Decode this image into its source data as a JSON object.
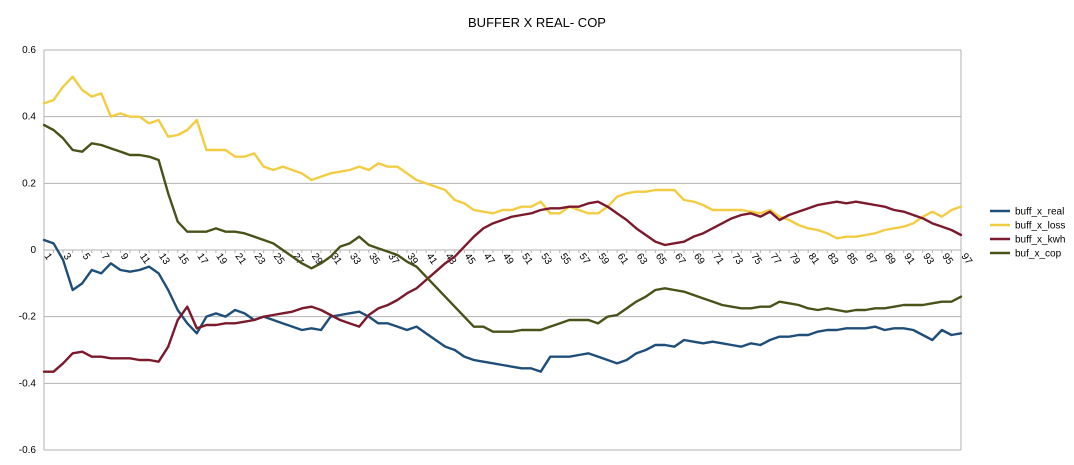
{
  "chart_data": {
    "type": "line",
    "title": "BUFFER X REAL- COP",
    "xlabel": "",
    "ylabel": "",
    "ylim": [
      -0.6,
      0.6
    ],
    "yticks": [
      "0.6",
      "0.4",
      "0.2",
      "0",
      "-0.2",
      "-0.4",
      "-0.6"
    ],
    "ytick_values": [
      0.6,
      0.4,
      0.2,
      0,
      -0.2,
      -0.4,
      -0.6
    ],
    "grid": true,
    "legend_position": "right",
    "x": [
      1,
      2,
      3,
      4,
      5,
      6,
      7,
      8,
      9,
      10,
      11,
      12,
      13,
      14,
      15,
      16,
      17,
      18,
      19,
      20,
      21,
      22,
      23,
      24,
      25,
      26,
      27,
      28,
      29,
      30,
      31,
      32,
      33,
      34,
      35,
      36,
      37,
      38,
      39,
      40,
      41,
      42,
      43,
      44,
      45,
      46,
      47,
      48,
      49,
      50,
      51,
      52,
      53,
      54,
      55,
      56,
      57,
      58,
      59,
      60,
      61,
      62,
      63,
      64,
      65,
      66,
      67,
      68,
      69,
      70,
      71,
      72,
      73,
      74,
      75,
      76,
      77,
      78,
      79,
      80,
      81,
      82,
      83,
      84,
      85,
      86,
      87,
      88,
      89,
      90,
      91,
      92,
      93,
      94,
      95,
      96,
      97
    ],
    "x_tick_labels": [
      "1",
      "3",
      "5",
      "7",
      "9",
      "11",
      "13",
      "15",
      "17",
      "19",
      "21",
      "23",
      "25",
      "27",
      "29",
      "31",
      "33",
      "35",
      "37",
      "39",
      "41",
      "43",
      "45",
      "47",
      "49",
      "51",
      "53",
      "55",
      "57",
      "59",
      "61",
      "63",
      "65",
      "67",
      "69",
      "71",
      "73",
      "75",
      "77",
      "79",
      "81",
      "83",
      "85",
      "87",
      "89",
      "91",
      "93",
      "95",
      "97"
    ],
    "series": [
      {
        "name": "buff_x_real",
        "color": "#1f4e79",
        "values": [
          0.03,
          0.02,
          -0.03,
          -0.12,
          -0.1,
          -0.06,
          -0.07,
          -0.04,
          -0.06,
          -0.065,
          -0.06,
          -0.05,
          -0.07,
          -0.12,
          -0.18,
          -0.22,
          -0.25,
          -0.2,
          -0.19,
          -0.2,
          -0.18,
          -0.19,
          -0.21,
          -0.2,
          -0.21,
          -0.22,
          -0.23,
          -0.24,
          -0.235,
          -0.24,
          -0.2,
          -0.195,
          -0.19,
          -0.185,
          -0.2,
          -0.22,
          -0.22,
          -0.23,
          -0.24,
          -0.23,
          -0.25,
          -0.27,
          -0.29,
          -0.3,
          -0.32,
          -0.33,
          -0.335,
          -0.34,
          -0.345,
          -0.35,
          -0.355,
          -0.355,
          -0.365,
          -0.32,
          -0.32,
          -0.32,
          -0.315,
          -0.31,
          -0.32,
          -0.33,
          -0.34,
          -0.33,
          -0.31,
          -0.3,
          -0.285,
          -0.285,
          -0.29,
          -0.27,
          -0.275,
          -0.28,
          -0.275,
          -0.28,
          -0.285,
          -0.29,
          -0.28,
          -0.285,
          -0.27,
          -0.26,
          -0.26,
          -0.255,
          -0.255,
          -0.245,
          -0.24,
          -0.24,
          -0.235,
          -0.235,
          -0.235,
          -0.23,
          -0.24,
          -0.235,
          -0.235,
          -0.24,
          -0.255,
          -0.27,
          -0.24,
          -0.255,
          -0.25
        ]
      },
      {
        "name": "buff_x_loss",
        "color": "#f2cd44",
        "values": [
          0.44,
          0.45,
          0.49,
          0.52,
          0.48,
          0.46,
          0.47,
          0.4,
          0.41,
          0.4,
          0.4,
          0.38,
          0.39,
          0.34,
          0.345,
          0.36,
          0.39,
          0.3,
          0.3,
          0.3,
          0.28,
          0.28,
          0.29,
          0.25,
          0.24,
          0.25,
          0.24,
          0.23,
          0.21,
          0.22,
          0.23,
          0.235,
          0.24,
          0.25,
          0.24,
          0.26,
          0.25,
          0.25,
          0.23,
          0.21,
          0.2,
          0.19,
          0.18,
          0.15,
          0.14,
          0.12,
          0.115,
          0.11,
          0.12,
          0.12,
          0.13,
          0.13,
          0.145,
          0.11,
          0.11,
          0.13,
          0.12,
          0.11,
          0.11,
          0.13,
          0.16,
          0.17,
          0.175,
          0.175,
          0.18,
          0.18,
          0.18,
          0.15,
          0.145,
          0.135,
          0.12,
          0.12,
          0.12,
          0.12,
          0.115,
          0.11,
          0.12,
          0.1,
          0.09,
          0.075,
          0.065,
          0.06,
          0.05,
          0.035,
          0.04,
          0.04,
          0.045,
          0.05,
          0.06,
          0.065,
          0.07,
          0.08,
          0.1,
          0.115,
          0.1,
          0.12,
          0.13
        ]
      },
      {
        "name": "buff_x_kwh",
        "color": "#7b1a2c",
        "values": [
          -0.365,
          -0.365,
          -0.34,
          -0.31,
          -0.305,
          -0.32,
          -0.32,
          -0.325,
          -0.325,
          -0.325,
          -0.33,
          -0.33,
          -0.335,
          -0.29,
          -0.21,
          -0.17,
          -0.235,
          -0.225,
          -0.225,
          -0.22,
          -0.22,
          -0.215,
          -0.21,
          -0.2,
          -0.195,
          -0.19,
          -0.185,
          -0.175,
          -0.17,
          -0.18,
          -0.195,
          -0.21,
          -0.22,
          -0.23,
          -0.195,
          -0.175,
          -0.165,
          -0.15,
          -0.13,
          -0.115,
          -0.09,
          -0.065,
          -0.04,
          -0.02,
          0.01,
          0.04,
          0.065,
          0.08,
          0.09,
          0.1,
          0.105,
          0.11,
          0.12,
          0.125,
          0.125,
          0.13,
          0.13,
          0.14,
          0.145,
          0.13,
          0.11,
          0.09,
          0.065,
          0.045,
          0.025,
          0.015,
          0.02,
          0.025,
          0.04,
          0.05,
          0.065,
          0.08,
          0.095,
          0.105,
          0.11,
          0.1,
          0.115,
          0.09,
          0.105,
          0.115,
          0.125,
          0.135,
          0.14,
          0.145,
          0.14,
          0.145,
          0.14,
          0.135,
          0.13,
          0.12,
          0.115,
          0.105,
          0.095,
          0.08,
          0.07,
          0.06,
          0.045
        ]
      },
      {
        "name": "buf_x_cop",
        "color": "#4a5219",
        "values": [
          0.375,
          0.36,
          0.335,
          0.3,
          0.295,
          0.32,
          0.315,
          0.305,
          0.295,
          0.285,
          0.285,
          0.28,
          0.27,
          0.17,
          0.085,
          0.055,
          0.055,
          0.055,
          0.065,
          0.055,
          0.055,
          0.05,
          0.04,
          0.03,
          0.02,
          0.0,
          -0.02,
          -0.04,
          -0.055,
          -0.04,
          -0.02,
          0.01,
          0.02,
          0.04,
          0.015,
          0.005,
          -0.005,
          -0.015,
          -0.035,
          -0.05,
          -0.08,
          -0.11,
          -0.14,
          -0.17,
          -0.2,
          -0.23,
          -0.23,
          -0.245,
          -0.245,
          -0.245,
          -0.24,
          -0.24,
          -0.24,
          -0.23,
          -0.22,
          -0.21,
          -0.21,
          -0.21,
          -0.22,
          -0.2,
          -0.195,
          -0.175,
          -0.155,
          -0.14,
          -0.12,
          -0.115,
          -0.12,
          -0.125,
          -0.135,
          -0.145,
          -0.155,
          -0.165,
          -0.17,
          -0.175,
          -0.175,
          -0.17,
          -0.17,
          -0.155,
          -0.16,
          -0.165,
          -0.175,
          -0.18,
          -0.175,
          -0.18,
          -0.185,
          -0.18,
          -0.18,
          -0.175,
          -0.175,
          -0.17,
          -0.165,
          -0.165,
          -0.165,
          -0.16,
          -0.155,
          -0.155,
          -0.14
        ]
      }
    ]
  }
}
